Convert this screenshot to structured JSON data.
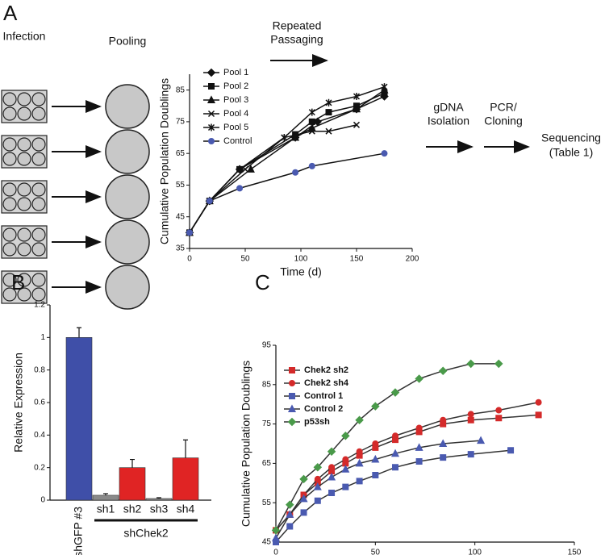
{
  "panel_labels": [
    "A",
    "B",
    "C"
  ],
  "diagram": {
    "infection": "Infection",
    "pooling": "Pooling",
    "passaging": [
      "Repeated",
      "Passaging"
    ],
    "isolation": [
      "gDNA",
      "Isolation"
    ],
    "cloning": [
      "PCR/",
      "Cloning"
    ],
    "sequencing": [
      "Sequencing",
      "(Table 1)"
    ]
  },
  "chart_data": [
    {
      "type": "line",
      "x_label": "Time (d)",
      "y_label": "Cumulative Population Doublings",
      "xlim": [
        0,
        200
      ],
      "xticks": [
        0,
        50,
        100,
        150,
        200
      ],
      "ylim": [
        35,
        90
      ],
      "yticks": [
        35,
        45,
        55,
        65,
        75,
        85
      ],
      "line_color": "#111111",
      "series": [
        {
          "name": "Pool 1",
          "marker": "diamond",
          "color": "#111111",
          "x": [
            0,
            18,
            45,
            95,
            115,
            150,
            175
          ],
          "values": [
            40,
            50,
            60,
            70,
            75,
            79,
            83
          ]
        },
        {
          "name": "Pool 2",
          "marker": "square",
          "color": "#111111",
          "x": [
            0,
            18,
            45,
            95,
            110,
            125,
            150,
            175
          ],
          "values": [
            40,
            50,
            60,
            71,
            75,
            78,
            80,
            84
          ]
        },
        {
          "name": "Pool 3",
          "marker": "triangle",
          "color": "#111111",
          "x": [
            0,
            18,
            55,
            95,
            110,
            150,
            175
          ],
          "values": [
            40,
            50,
            60,
            70,
            73,
            79,
            85
          ]
        },
        {
          "name": "Pool 4",
          "marker": "x",
          "color": "#111111",
          "x": [
            0,
            18,
            50,
            85,
            110,
            125,
            150
          ],
          "values": [
            40,
            50,
            60,
            70,
            72,
            72,
            74
          ]
        },
        {
          "name": "Pool 5",
          "marker": "star",
          "color": "#111111",
          "x": [
            0,
            18,
            45,
            85,
            110,
            125,
            150,
            175
          ],
          "values": [
            40,
            50,
            60,
            70,
            78,
            81,
            83,
            86
          ]
        },
        {
          "name": "Control",
          "marker": "circle",
          "color": "#4a5ab0",
          "x": [
            0,
            18,
            45,
            95,
            110,
            175
          ],
          "values": [
            40,
            50,
            54,
            59,
            61,
            65
          ]
        }
      ]
    },
    {
      "type": "bar",
      "y_label": "Relative Expression",
      "group_label": "shChek2",
      "categories": [
        "shGFP #3",
        "sh1",
        "sh2",
        "sh3",
        "sh4"
      ],
      "values": [
        1,
        0.03,
        0.2,
        0.01,
        0.26
      ],
      "errors": [
        0.06,
        0.01,
        0.05,
        0.005,
        0.11
      ],
      "colors": [
        "#3f4fa8",
        "#8a8a8a",
        "#e02424",
        "#8a8a8a",
        "#e02424"
      ],
      "ylim": [
        0,
        1.2
      ],
      "yticks": [
        0,
        0.2,
        0.4,
        0.6,
        0.8,
        1,
        1.2
      ]
    },
    {
      "type": "line",
      "x_label": "Time (d)",
      "y_label": "Cumulative Population Doublings",
      "xlim": [
        0,
        150
      ],
      "xticks": [
        0,
        50,
        100,
        150
      ],
      "ylim": [
        45,
        95
      ],
      "yticks": [
        45,
        55,
        65,
        75,
        85,
        95
      ],
      "line_color": "#333333",
      "series": [
        {
          "name": "Chek2 sh2",
          "marker": "square",
          "color": "#d42a2a",
          "x": [
            0,
            7,
            14,
            21,
            28,
            35,
            42,
            50,
            60,
            72,
            84,
            98,
            112,
            132
          ],
          "values": [
            48,
            52,
            57,
            60,
            63,
            65,
            67,
            69,
            71,
            73,
            75,
            76,
            76.5,
            77.3
          ]
        },
        {
          "name": "Chek2 sh4",
          "marker": "circle",
          "color": "#d42a2a",
          "x": [
            0,
            7,
            14,
            21,
            28,
            35,
            42,
            50,
            60,
            72,
            84,
            98,
            112,
            132
          ],
          "values": [
            48,
            52,
            57,
            61,
            64,
            66,
            68,
            70,
            72,
            74,
            76,
            77.5,
            78.5,
            80.5
          ]
        },
        {
          "name": "Control 1",
          "marker": "square",
          "color": "#4a5ab0",
          "x": [
            0,
            7,
            14,
            21,
            28,
            35,
            42,
            50,
            60,
            72,
            84,
            98,
            118
          ],
          "values": [
            45,
            49,
            52.5,
            55.5,
            57.5,
            59,
            60.5,
            62,
            64,
            65.5,
            66.5,
            67.3,
            68.3
          ]
        },
        {
          "name": "Control 2",
          "marker": "triangle",
          "color": "#4a5ab0",
          "x": [
            0,
            7,
            14,
            21,
            28,
            35,
            42,
            50,
            60,
            72,
            84,
            103
          ],
          "values": [
            46,
            52,
            56,
            59,
            61.5,
            63.5,
            65,
            66,
            67.5,
            69,
            70,
            70.8
          ]
        },
        {
          "name": "p53sh",
          "marker": "diamond",
          "color": "#4a9a4a",
          "x": [
            0,
            7,
            14,
            21,
            28,
            35,
            42,
            50,
            60,
            72,
            84,
            98,
            112
          ],
          "values": [
            48,
            54.5,
            61,
            64,
            68,
            72,
            76,
            79.5,
            83,
            86.5,
            88.5,
            90.3,
            90.3
          ]
        }
      ]
    }
  ]
}
